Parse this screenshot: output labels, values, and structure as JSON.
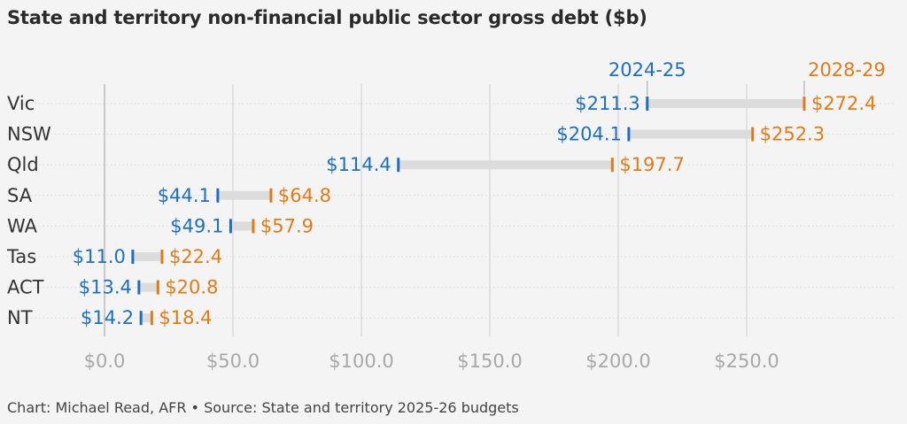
{
  "header": {
    "title": "State and territory non-financial public sector gross debt ($b)"
  },
  "footer": {
    "source": "Chart: Michael Read, AFR • Source: State and territory 2025-26 budgets"
  },
  "colors": {
    "start": "#1f6fbf",
    "end": "#e07b1a",
    "bar": "#dcdcdc",
    "grid": "#cfcfcf",
    "zero": "#b8b8b8",
    "category": "#333333",
    "tick": "#a8a8a8"
  },
  "chart_data": {
    "type": "dumbbell",
    "title": "State and territory non-financial public sector gross debt ($b)",
    "xlabel": "",
    "ylabel": "",
    "xlim": [
      0,
      300
    ],
    "x_ticks": [
      0,
      50,
      100,
      150,
      200,
      250
    ],
    "x_tick_labels": [
      "$0.0",
      "$50.0",
      "$100.0",
      "$150.0",
      "$200.0",
      "$250.0"
    ],
    "grid": true,
    "categories": [
      "Vic",
      "NSW",
      "Qld",
      "SA",
      "WA",
      "Tas",
      "ACT",
      "NT"
    ],
    "series": [
      {
        "name": "2024-25",
        "values": [
          211.3,
          204.1,
          114.4,
          44.1,
          49.1,
          11.0,
          13.4,
          14.2
        ],
        "labels": [
          "$211.3",
          "$204.1",
          "$114.4",
          "$44.1",
          "$49.1",
          "$11.0",
          "$13.4",
          "$14.2"
        ]
      },
      {
        "name": "2028-29",
        "values": [
          272.4,
          252.3,
          197.7,
          64.8,
          57.9,
          22.4,
          20.8,
          18.4
        ],
        "labels": [
          "$272.4",
          "$252.3",
          "$197.7",
          "$64.8",
          "$57.9",
          "$22.4",
          "$20.8",
          "$18.4"
        ]
      }
    ]
  }
}
